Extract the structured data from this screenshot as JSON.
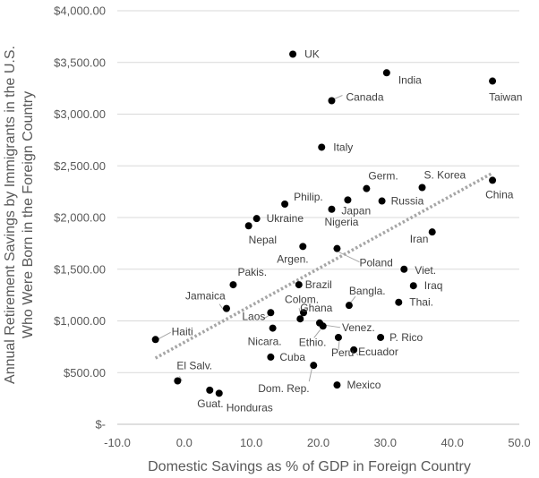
{
  "chart_data": {
    "type": "scatter",
    "xlabel": "Domestic Savings as % of GDP in Foreign Country",
    "ylabel_lines": [
      "Annual Retirement Savings by Immigrants in the U.S.",
      "Who Were Born in the Foreign Country"
    ],
    "xlim": [
      -10,
      50
    ],
    "ylim": [
      0,
      4000
    ],
    "x_ticks": [
      -10,
      0,
      10,
      20,
      30,
      40,
      50
    ],
    "x_tick_labels": [
      "-10.0",
      "0.0",
      "10.0",
      "20.0",
      "30.0",
      "40.0",
      "50.0"
    ],
    "y_ticks": [
      0,
      500,
      1000,
      1500,
      2000,
      2500,
      3000,
      3500,
      4000
    ],
    "y_tick_labels": [
      "$-",
      "$500.00",
      "$1,000.00",
      "$1,500.00",
      "$2,000.00",
      "$2,500.00",
      "$3,000.00",
      "$3,500.00",
      "$4,000.00"
    ],
    "grid": {
      "horizontal": true,
      "vertical": false
    },
    "point_color": "#000000",
    "gridline_color": "#d9d9d9",
    "trendline": {
      "style": "dotted",
      "color": "#a6a6a6",
      "x": [
        -4.3,
        46
      ],
      "y": [
        640,
        2430
      ]
    },
    "points": [
      {
        "label": "UK",
        "x": 16.2,
        "y": 3580
      },
      {
        "label": "India",
        "x": 30.2,
        "y": 3400
      },
      {
        "label": "Taiwan",
        "x": 46.0,
        "y": 3320
      },
      {
        "label": "Canada",
        "x": 22.0,
        "y": 3130
      },
      {
        "label": "Italy",
        "x": 20.5,
        "y": 2680
      },
      {
        "label": "China",
        "x": 46.0,
        "y": 2360
      },
      {
        "label": "S. Korea",
        "x": 35.5,
        "y": 2290
      },
      {
        "label": "Germ.",
        "x": 27.2,
        "y": 2280
      },
      {
        "label": "Japan",
        "x": 24.4,
        "y": 2170
      },
      {
        "label": "Russia",
        "x": 29.5,
        "y": 2160
      },
      {
        "label": "Philip.",
        "x": 15.0,
        "y": 2130
      },
      {
        "label": "Nigeria",
        "x": 22.0,
        "y": 2080
      },
      {
        "label": "Ukraine",
        "x": 10.8,
        "y": 1990
      },
      {
        "label": "Nepal",
        "x": 9.6,
        "y": 1920
      },
      {
        "label": "Iran",
        "x": 37.0,
        "y": 1860
      },
      {
        "label": "Argen.",
        "x": 17.7,
        "y": 1720
      },
      {
        "label": "Poland",
        "x": 22.8,
        "y": 1700
      },
      {
        "label": "Viet.",
        "x": 32.8,
        "y": 1500
      },
      {
        "label": "Pakis.",
        "x": 7.3,
        "y": 1350
      },
      {
        "label": "Brazil",
        "x": 17.1,
        "y": 1350
      },
      {
        "label": "Iraq",
        "x": 34.2,
        "y": 1340
      },
      {
        "label": "Thai.",
        "x": 32.0,
        "y": 1180
      },
      {
        "label": "Bangla.",
        "x": 24.6,
        "y": 1150
      },
      {
        "label": "Jamaica",
        "x": 6.3,
        "y": 1120
      },
      {
        "label": "Colom.",
        "x": 17.8,
        "y": 1080
      },
      {
        "label": "Laos",
        "x": 12.9,
        "y": 1080
      },
      {
        "label": "Ghana",
        "x": 17.3,
        "y": 1020
      },
      {
        "label": "Venez.",
        "x": 20.2,
        "y": 980
      },
      {
        "label": "Ethio.",
        "x": 20.7,
        "y": 950
      },
      {
        "label": "Nicara.",
        "x": 13.2,
        "y": 930
      },
      {
        "label": "Haiti",
        "x": -4.3,
        "y": 820
      },
      {
        "label": "P. Rico",
        "x": 29.3,
        "y": 840
      },
      {
        "label": "Peru",
        "x": 23.0,
        "y": 840
      },
      {
        "label": "Ecuador",
        "x": 25.3,
        "y": 720
      },
      {
        "label": "Cuba",
        "x": 12.9,
        "y": 650
      },
      {
        "label": "Dom. Rep.",
        "x": 19.3,
        "y": 570
      },
      {
        "label": "El Salv.",
        "x": -1.0,
        "y": 420
      },
      {
        "label": "Mexico",
        "x": 22.8,
        "y": 380
      },
      {
        "label": "Guat.",
        "x": 3.8,
        "y": 330
      },
      {
        "label": "Honduras",
        "x": 5.2,
        "y": 300
      }
    ]
  }
}
